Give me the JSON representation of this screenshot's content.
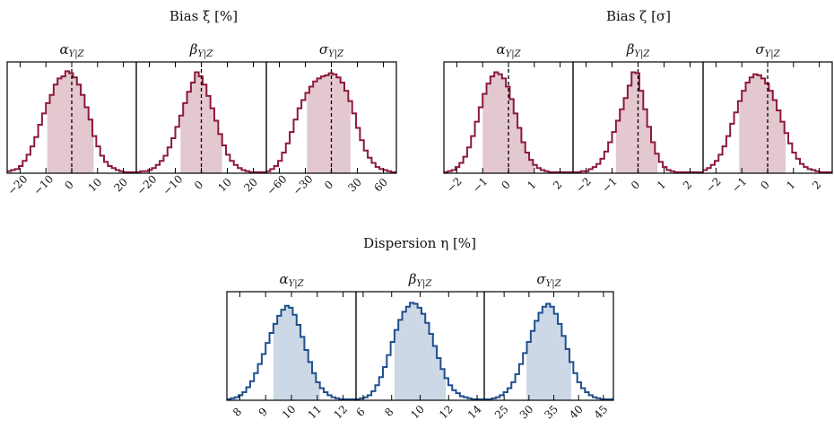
{
  "colors": {
    "bias_line": "#8b1a3a",
    "bias_fill": "#e4c8cf",
    "dispersion_line": "#1f4f8c",
    "dispersion_fill": "#ccd8e6",
    "background": "#ffffff"
  },
  "groups": [
    {
      "id": "bias-xi",
      "title": "Bias ξ [%]"
    },
    {
      "id": "bias-zeta",
      "title": "Bias ζ [σ]"
    },
    {
      "id": "dispersion-eta",
      "title": "Dispersion η [%]"
    }
  ],
  "chart_data": [
    {
      "type": "histogram",
      "group": "bias-xi",
      "param": "α",
      "sub": "Y|Z",
      "xlim": [
        -25,
        25
      ],
      "ylim": [
        0,
        1.08
      ],
      "ticks": [
        -20,
        -10,
        0,
        10,
        20
      ],
      "tick_labels": [
        "−20",
        "−10",
        "0",
        "10",
        "20"
      ],
      "shade": [
        -9.5,
        8.5
      ],
      "zero_line": true,
      "color": "bias",
      "bins_start": -25,
      "bin_width": 1.5,
      "values": [
        0.02,
        0.03,
        0.04,
        0.07,
        0.12,
        0.18,
        0.26,
        0.35,
        0.47,
        0.58,
        0.68,
        0.76,
        0.86,
        0.92,
        0.94,
        0.99,
        0.97,
        0.93,
        0.86,
        0.76,
        0.64,
        0.52,
        0.36,
        0.26,
        0.17,
        0.11,
        0.07,
        0.05,
        0.03,
        0.02,
        0.01,
        0.01,
        0.01,
        0.01
      ]
    },
    {
      "type": "histogram",
      "group": "bias-xi",
      "param": "β",
      "sub": "Y|Z",
      "xlim": [
        -25,
        25
      ],
      "ylim": [
        0,
        1.08
      ],
      "ticks": [
        -20,
        -10,
        0,
        10,
        20
      ],
      "tick_labels": [
        "−20",
        "−10",
        "0",
        "10",
        "20"
      ],
      "shade": [
        -8,
        8
      ],
      "zero_line": true,
      "color": "bias",
      "bins_start": -25,
      "bin_width": 1.5,
      "values": [
        0.01,
        0.02,
        0.02,
        0.03,
        0.05,
        0.08,
        0.12,
        0.17,
        0.25,
        0.34,
        0.45,
        0.56,
        0.68,
        0.79,
        0.88,
        0.98,
        0.94,
        0.86,
        0.75,
        0.63,
        0.51,
        0.38,
        0.27,
        0.18,
        0.12,
        0.08,
        0.05,
        0.03,
        0.02,
        0.01,
        0.01,
        0.01,
        0.01,
        0.01
      ]
    },
    {
      "type": "histogram",
      "group": "bias-xi",
      "param": "σ",
      "sub": "Y|Z",
      "xlim": [
        -75,
        75
      ],
      "ylim": [
        0,
        1.08
      ],
      "ticks": [
        -60,
        -30,
        0,
        30,
        60
      ],
      "tick_labels": [
        "−60",
        "−30",
        "0",
        "30",
        "60"
      ],
      "shade": [
        -28,
        22
      ],
      "zero_line": true,
      "color": "bias",
      "bins_start": -75,
      "bin_width": 4.5,
      "values": [
        0.02,
        0.04,
        0.07,
        0.12,
        0.2,
        0.29,
        0.4,
        0.52,
        0.63,
        0.71,
        0.78,
        0.84,
        0.89,
        0.92,
        0.94,
        0.95,
        0.97,
        0.96,
        0.93,
        0.88,
        0.8,
        0.7,
        0.58,
        0.44,
        0.32,
        0.22,
        0.15,
        0.1,
        0.06,
        0.04,
        0.03,
        0.02,
        0.01,
        0.01
      ]
    },
    {
      "type": "histogram",
      "group": "bias-zeta",
      "param": "α",
      "sub": "Y|Z",
      "xlim": [
        -2.5,
        2.5
      ],
      "ylim": [
        0,
        1.08
      ],
      "ticks": [
        -2,
        -1,
        0,
        1,
        2
      ],
      "tick_labels": [
        "−2",
        "−1",
        "0",
        "1",
        "2"
      ],
      "shade": [
        -1,
        1
      ],
      "zero_line": true,
      "color": "bias",
      "bins_start": -2.5,
      "bin_width": 0.15,
      "values": [
        0.01,
        0.02,
        0.03,
        0.06,
        0.1,
        0.16,
        0.25,
        0.36,
        0.5,
        0.64,
        0.77,
        0.87,
        0.94,
        0.98,
        0.96,
        0.92,
        0.84,
        0.72,
        0.58,
        0.44,
        0.3,
        0.2,
        0.13,
        0.08,
        0.05,
        0.03,
        0.02,
        0.01,
        0.01,
        0.01,
        0.01,
        0.01,
        0.01,
        0.01
      ]
    },
    {
      "type": "histogram",
      "group": "bias-zeta",
      "param": "β",
      "sub": "Y|Z",
      "xlim": [
        -2.5,
        2.5
      ],
      "ylim": [
        0,
        1.08
      ],
      "ticks": [
        -2,
        -1,
        0,
        1,
        2
      ],
      "tick_labels": [
        "−2",
        "−1",
        "0",
        "1",
        "2"
      ],
      "shade": [
        -0.85,
        0.75
      ],
      "zero_line": true,
      "color": "bias",
      "bins_start": -2.5,
      "bin_width": 0.15,
      "values": [
        0.01,
        0.01,
        0.02,
        0.02,
        0.04,
        0.06,
        0.09,
        0.14,
        0.21,
        0.3,
        0.4,
        0.51,
        0.62,
        0.73,
        0.85,
        0.98,
        0.97,
        0.8,
        0.62,
        0.45,
        0.3,
        0.19,
        0.11,
        0.06,
        0.03,
        0.02,
        0.01,
        0.01,
        0.01,
        0.01,
        0.01,
        0.01,
        0.01,
        0.01
      ]
    },
    {
      "type": "histogram",
      "group": "bias-zeta",
      "param": "σ",
      "sub": "Y|Z",
      "xlim": [
        -2.5,
        2.5
      ],
      "ylim": [
        0,
        1.08
      ],
      "ticks": [
        -2,
        -1,
        0,
        1,
        2
      ],
      "tick_labels": [
        "−2",
        "−1",
        "0",
        "1",
        "2"
      ],
      "shade": [
        -1.1,
        0.7
      ],
      "zero_line": true,
      "color": "bias",
      "bins_start": -2.5,
      "bin_width": 0.15,
      "values": [
        0.03,
        0.05,
        0.08,
        0.12,
        0.18,
        0.26,
        0.36,
        0.48,
        0.59,
        0.7,
        0.8,
        0.88,
        0.93,
        0.96,
        0.95,
        0.92,
        0.87,
        0.8,
        0.71,
        0.61,
        0.5,
        0.39,
        0.29,
        0.2,
        0.14,
        0.09,
        0.06,
        0.04,
        0.03,
        0.02,
        0.01,
        0.01,
        0.01,
        0.01
      ]
    },
    {
      "type": "histogram",
      "group": "dispersion-eta",
      "param": "α",
      "sub": "Y|Z",
      "xlim": [
        7.5,
        12.5
      ],
      "ylim": [
        0,
        1.08
      ],
      "ticks": [
        8,
        9,
        10,
        11,
        12
      ],
      "tick_labels": [
        "8",
        "9",
        "10",
        "11",
        "12"
      ],
      "shade": [
        9.3,
        11.1
      ],
      "zero_line": false,
      "color": "dispersion",
      "bins_start": 7.5,
      "bin_width": 0.15,
      "values": [
        0.01,
        0.02,
        0.03,
        0.05,
        0.08,
        0.13,
        0.19,
        0.27,
        0.36,
        0.46,
        0.57,
        0.67,
        0.76,
        0.84,
        0.9,
        0.94,
        0.92,
        0.85,
        0.75,
        0.63,
        0.5,
        0.38,
        0.27,
        0.18,
        0.12,
        0.08,
        0.05,
        0.03,
        0.02,
        0.01,
        0.01,
        0.01,
        0.01,
        0.01
      ]
    },
    {
      "type": "histogram",
      "group": "dispersion-eta",
      "param": "β",
      "sub": "Y|Z",
      "xlim": [
        5.5,
        14.5
      ],
      "ylim": [
        0,
        1.08
      ],
      "ticks": [
        6,
        8,
        10,
        12,
        14
      ],
      "tick_labels": [
        "6",
        "8",
        "10",
        "12",
        "14"
      ],
      "shade": [
        8.2,
        11.8
      ],
      "zero_line": false,
      "color": "dispersion",
      "bins_start": 5.5,
      "bin_width": 0.27,
      "values": [
        0.01,
        0.02,
        0.03,
        0.05,
        0.09,
        0.15,
        0.23,
        0.33,
        0.45,
        0.58,
        0.7,
        0.8,
        0.88,
        0.93,
        0.97,
        0.96,
        0.92,
        0.86,
        0.77,
        0.66,
        0.54,
        0.42,
        0.31,
        0.22,
        0.15,
        0.1,
        0.07,
        0.04,
        0.03,
        0.02,
        0.01,
        0.01,
        0.01,
        0.01
      ]
    },
    {
      "type": "histogram",
      "group": "dispersion-eta",
      "param": "σ",
      "sub": "Y|Z",
      "xlim": [
        21,
        47
      ],
      "ylim": [
        0,
        1.08
      ],
      "ticks": [
        25,
        30,
        35,
        40,
        45
      ],
      "tick_labels": [
        "25",
        "30",
        "35",
        "40",
        "45"
      ],
      "shade": [
        29.5,
        38.5
      ],
      "zero_line": false,
      "color": "dispersion",
      "bins_start": 21,
      "bin_width": 0.78,
      "values": [
        0.01,
        0.01,
        0.02,
        0.03,
        0.05,
        0.08,
        0.12,
        0.18,
        0.26,
        0.36,
        0.47,
        0.58,
        0.69,
        0.79,
        0.87,
        0.93,
        0.96,
        0.93,
        0.86,
        0.76,
        0.64,
        0.51,
        0.38,
        0.27,
        0.18,
        0.12,
        0.08,
        0.05,
        0.03,
        0.02,
        0.01,
        0.01,
        0.01,
        0.01
      ]
    }
  ]
}
